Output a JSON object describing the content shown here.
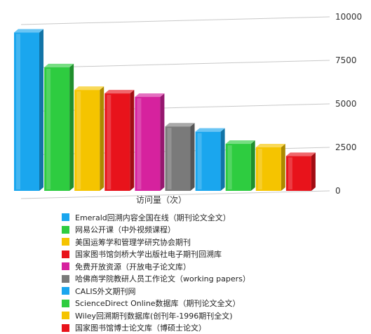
{
  "chart_data": {
    "type": "bar",
    "style": "3d",
    "xlabel": "访问量（次）",
    "ylabel": "",
    "ylim": [
      0,
      10000
    ],
    "yticks": [
      0,
      2500,
      5000,
      7500,
      10000
    ],
    "grid": true,
    "legend_position": "bottom",
    "categories": [
      "Emerald回溯内容全国在线（期刊论文全文）",
      "网易公开课（中外视频课程）",
      "美国运筹学和管理学研究协会期刊",
      "国家图书馆剑桥大学出版社电子期刊回溯库",
      "免费开放资源（开放电子论文库）",
      "哈佛商学院教研人员工作论文（working papers）",
      "CALIS外文期刊网",
      "ScienceDirect Online数据库（期刊论文全文）",
      "Wiley回溯期刊数据库(创刊年-1996期刊全文)",
      "国家图书馆博士论文库（博硕士论文）"
    ],
    "values": [
      9100,
      7100,
      5800,
      5600,
      5400,
      3700,
      3400,
      2700,
      2500,
      2000
    ],
    "colors": [
      "#1aa6ee",
      "#2ecc40",
      "#f5c400",
      "#e8131b",
      "#d6229e",
      "#7a7a7a",
      "#1aa6ee",
      "#2ecc40",
      "#f5c400",
      "#e8131b"
    ]
  }
}
